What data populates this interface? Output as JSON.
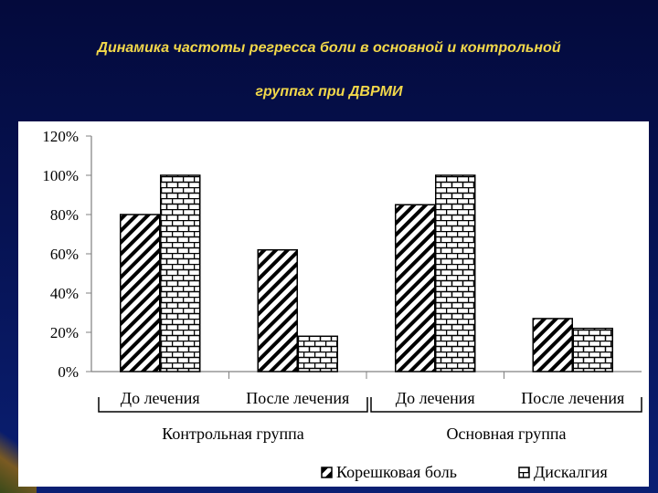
{
  "slide": {
    "title_line1": "Динамика частоты регресса боли в основной  и контрольной",
    "title_line2": "группах при ДВРМИ"
  },
  "chart_data": {
    "type": "bar",
    "categories": [
      "До лечения",
      "После лечения",
      "До лечения",
      "После лечения"
    ],
    "groups": [
      "Контрольная группа",
      "Основная группа"
    ],
    "series": [
      {
        "name": "Корешковая боль",
        "values": [
          80,
          62,
          85,
          27
        ]
      },
      {
        "name": "Дискалгия",
        "values": [
          100,
          18,
          100,
          22
        ]
      }
    ],
    "yticks": [
      "0%",
      "20%",
      "40%",
      "60%",
      "80%",
      "100%",
      "120%"
    ],
    "ylim": [
      0,
      120
    ],
    "grid": false,
    "legend": "bottom-right",
    "patterns": [
      "diagonal-hatch",
      "brick"
    ]
  }
}
